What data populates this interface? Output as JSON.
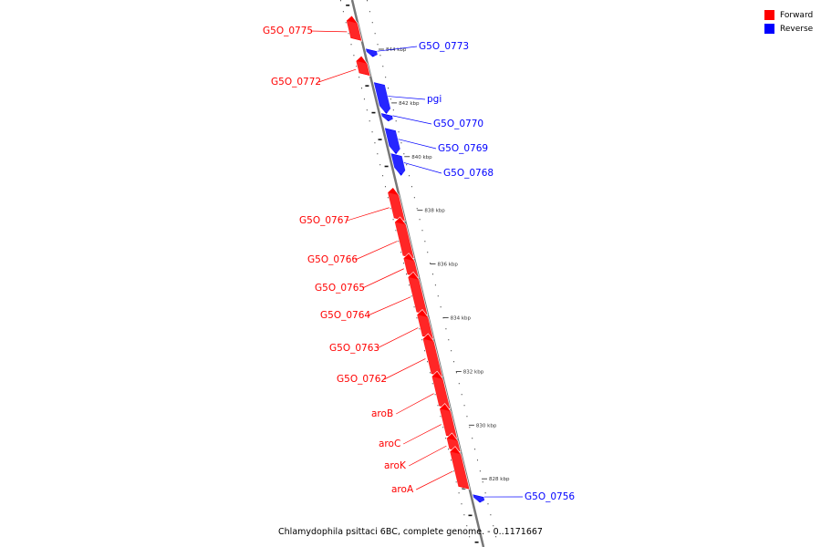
{
  "legend": {
    "forward": {
      "label": "Forward",
      "color": "#ff0000"
    },
    "reverse": {
      "label": "Reverse",
      "color": "#0000ff"
    }
  },
  "caption": "Chlamydophila psittaci 6BC, complete genome. - 0..1171667",
  "ticks": [
    {
      "label": "844 kbp",
      "kbp": 844
    },
    {
      "label": "842 kbp",
      "kbp": 842
    },
    {
      "label": "840 kbp",
      "kbp": 840
    },
    {
      "label": "838 kbp",
      "kbp": 838
    },
    {
      "label": "836 kbp",
      "kbp": 836
    },
    {
      "label": "834 kbp",
      "kbp": 834
    },
    {
      "label": "832 kbp",
      "kbp": 832
    },
    {
      "label": "830 kbp",
      "kbp": 830
    },
    {
      "label": "828 kbp",
      "kbp": 828
    }
  ],
  "genes": [
    {
      "name": "G5O_0775",
      "strand": "forward",
      "start": 845.0,
      "end": 844.3
    },
    {
      "name": "G5O_0773",
      "strand": "reverse",
      "start": 844.05,
      "end": 843.8
    },
    {
      "name": "G5O_0772",
      "strand": "forward",
      "start": 843.5,
      "end": 843.0
    },
    {
      "name": "pgi",
      "strand": "reverse",
      "start": 842.8,
      "end": 841.7
    },
    {
      "name": "G5O_0770",
      "strand": "reverse",
      "start": 841.65,
      "end": 841.4
    },
    {
      "name": "G5O_0769",
      "strand": "reverse",
      "start": 841.1,
      "end": 840.2
    },
    {
      "name": "G5O_0768",
      "strand": "reverse",
      "start": 840.15,
      "end": 839.4
    },
    {
      "name": "G5O_0767",
      "strand": "forward",
      "start": 838.6,
      "end": 837.6
    },
    {
      "name": "G5O_0766",
      "strand": "forward",
      "start": 837.5,
      "end": 836.2
    },
    {
      "name": "G5O_0765",
      "strand": "forward",
      "start": 836.15,
      "end": 835.5
    },
    {
      "name": "G5O_0764",
      "strand": "forward",
      "start": 835.45,
      "end": 834.1
    },
    {
      "name": "G5O_0763",
      "strand": "forward",
      "start": 834.05,
      "end": 833.2
    },
    {
      "name": "G5O_0762",
      "strand": "forward",
      "start": 833.15,
      "end": 831.8
    },
    {
      "name": "aroB",
      "strand": "forward",
      "start": 831.75,
      "end": 830.6
    },
    {
      "name": "aroC",
      "strand": "forward",
      "start": 830.55,
      "end": 829.5
    },
    {
      "name": "aroK",
      "strand": "forward",
      "start": 829.45,
      "end": 829.0
    },
    {
      "name": "aroA",
      "strand": "forward",
      "start": 828.95,
      "end": 827.6
    },
    {
      "name": "G5O_0756",
      "strand": "reverse",
      "start": 827.45,
      "end": 827.2
    }
  ]
}
